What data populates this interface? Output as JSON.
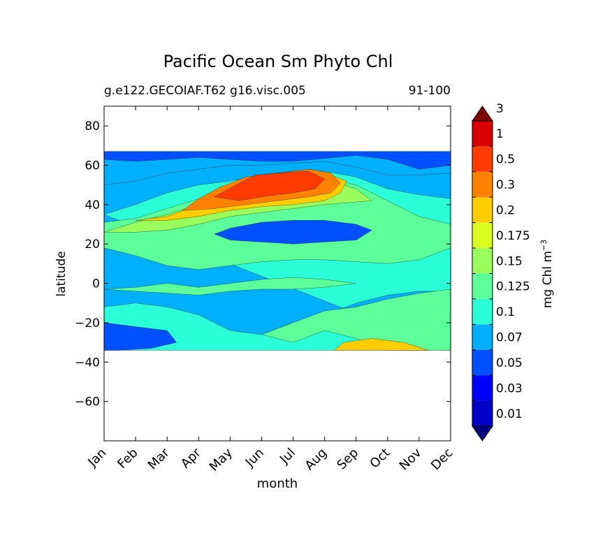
{
  "chart_data": {
    "type": "heatmap",
    "title": "Pacific Ocean Sm Phyto Chl",
    "subtitle_left": "g.e122.GECOIAF.T62 g16.visc.005",
    "subtitle_right": "91-100",
    "xlabel": "month",
    "ylabel": "latitude",
    "x_tick_labels": [
      "Jan",
      "Feb",
      "Mar",
      "Apr",
      "May",
      "Jun",
      "Jul",
      "Aug",
      "Sep",
      "Oct",
      "Nov",
      "Dec"
    ],
    "xlim": [
      0,
      11
    ],
    "ylim": [
      -80,
      90
    ],
    "y_ticks": [
      80,
      60,
      40,
      20,
      0,
      -20,
      -40,
      -60
    ],
    "y_tick_labels": [
      "80",
      "60",
      "40",
      "20",
      "0",
      "−20",
      "−40",
      "−60"
    ],
    "data_lat_range": [
      -34,
      67
    ],
    "colorbar": {
      "label": "mg Chl m",
      "label_exponent": "−3",
      "extend": "both",
      "levels": [
        0.01,
        0.03,
        0.05,
        0.07,
        0.1,
        0.125,
        0.15,
        0.175,
        0.2,
        0.3,
        0.5,
        1,
        3
      ],
      "level_labels": [
        "0.01",
        "0.03",
        "0.05",
        "0.07",
        "0.1",
        "0.125",
        "0.15",
        "0.175",
        "0.2",
        "0.3",
        "0.5",
        "1",
        "3"
      ],
      "colors": [
        "#00007f",
        "#0000c8",
        "#0000ff",
        "#0050ff",
        "#00b0ff",
        "#2affd8",
        "#5cff9a",
        "#9aff5c",
        "#d8ff1f",
        "#ffcd00",
        "#ff8100",
        "#ff3b00",
        "#d80000",
        "#7f0000"
      ]
    },
    "series": [
      {
        "name": "band_0.07",
        "polygon": [
          [
            0,
            50
          ],
          [
            1,
            52
          ],
          [
            2,
            56
          ],
          [
            3,
            58
          ],
          [
            4,
            60
          ],
          [
            5,
            60
          ],
          [
            6,
            61
          ],
          [
            7,
            62
          ],
          [
            8,
            59
          ],
          [
            9,
            55
          ],
          [
            10,
            55
          ],
          [
            11,
            56
          ],
          [
            11,
            30
          ],
          [
            10,
            31
          ],
          [
            9,
            30
          ],
          [
            8,
            27
          ],
          [
            7,
            24
          ],
          [
            6,
            22
          ],
          [
            5,
            22
          ],
          [
            4,
            21
          ],
          [
            3,
            20
          ],
          [
            2,
            19
          ],
          [
            1,
            20
          ],
          [
            0,
            21
          ]
        ]
      },
      {
        "name": "band_0.1",
        "polygon": [
          [
            0,
            35
          ],
          [
            1,
            40
          ],
          [
            2,
            46
          ],
          [
            3,
            50
          ],
          [
            4,
            52
          ],
          [
            5,
            55
          ],
          [
            6,
            57
          ],
          [
            7,
            57
          ],
          [
            8,
            54
          ],
          [
            9,
            48
          ],
          [
            10,
            45
          ],
          [
            11,
            43
          ],
          [
            11,
            -4
          ],
          [
            10,
            -4
          ],
          [
            9,
            -6
          ],
          [
            8,
            -10
          ],
          [
            7,
            -16
          ],
          [
            6,
            -20
          ],
          [
            5,
            -26
          ],
          [
            4,
            -24
          ],
          [
            3,
            -16
          ],
          [
            2,
            -12
          ],
          [
            1,
            -10
          ],
          [
            0,
            -12
          ],
          [
            0,
            -34
          ],
          [
            11,
            -34
          ]
        ]
      },
      {
        "name": "band_0.125",
        "polygon": [
          [
            0,
            31
          ],
          [
            1,
            33
          ],
          [
            2,
            38
          ],
          [
            3,
            43
          ],
          [
            4,
            47
          ],
          [
            5,
            50
          ],
          [
            6,
            53
          ],
          [
            7,
            54
          ],
          [
            8,
            50
          ],
          [
            9,
            42
          ],
          [
            10,
            34
          ],
          [
            11,
            30
          ],
          [
            11,
            18
          ],
          [
            10,
            12
          ],
          [
            9,
            10
          ],
          [
            8,
            11
          ],
          [
            7,
            12
          ],
          [
            6,
            12
          ],
          [
            5,
            11
          ],
          [
            4,
            9
          ],
          [
            3,
            7
          ],
          [
            2,
            9
          ],
          [
            1,
            14
          ],
          [
            0,
            18
          ]
        ]
      },
      {
        "name": "band_0.125_south",
        "polygon": [
          [
            5,
            -26
          ],
          [
            6,
            -20
          ],
          [
            7,
            -14
          ],
          [
            8,
            -12
          ],
          [
            9,
            -8
          ],
          [
            10,
            -5
          ],
          [
            11,
            -3
          ],
          [
            11,
            -34
          ],
          [
            9,
            -34
          ],
          [
            8,
            -28
          ],
          [
            7,
            -24
          ],
          [
            6,
            -30
          ]
        ]
      },
      {
        "name": "band_0.125_eq",
        "polygon": [
          [
            0,
            -3
          ],
          [
            1,
            -2
          ],
          [
            2,
            0
          ],
          [
            3,
            -2
          ],
          [
            4,
            0
          ],
          [
            5,
            2
          ],
          [
            6,
            3
          ],
          [
            7,
            2
          ],
          [
            8,
            0
          ],
          [
            7,
            -2
          ],
          [
            6,
            -3
          ],
          [
            5,
            -3
          ],
          [
            4,
            -4
          ],
          [
            3,
            -6
          ],
          [
            2,
            -5
          ],
          [
            1,
            -4
          ]
        ]
      },
      {
        "name": "band_0.15",
        "polygon": [
          [
            0,
            26
          ],
          [
            1,
            31
          ],
          [
            2,
            35
          ],
          [
            3,
            40
          ],
          [
            4,
            45
          ],
          [
            5,
            49
          ],
          [
            6,
            52
          ],
          [
            7,
            53
          ],
          [
            8,
            48
          ],
          [
            8.5,
            42
          ],
          [
            7,
            40
          ],
          [
            6,
            38
          ],
          [
            5,
            36
          ],
          [
            4,
            34
          ],
          [
            3,
            30
          ],
          [
            2,
            27
          ],
          [
            1,
            26
          ]
        ]
      },
      {
        "name": "band_0.2",
        "polygon": [
          [
            1,
            32
          ],
          [
            2,
            34
          ],
          [
            3,
            40
          ],
          [
            4,
            46
          ],
          [
            5,
            51
          ],
          [
            6,
            55
          ],
          [
            7,
            56
          ],
          [
            7.7,
            52
          ],
          [
            7.5,
            46
          ],
          [
            7,
            42
          ],
          [
            6,
            40
          ],
          [
            5,
            39
          ],
          [
            4,
            37
          ],
          [
            3,
            34
          ],
          [
            2,
            32
          ]
        ]
      },
      {
        "name": "band_0.2_south",
        "polygon": [
          [
            7.3,
            -34
          ],
          [
            7.6,
            -30
          ],
          [
            8.5,
            -28
          ],
          [
            9.5,
            -30
          ],
          [
            10.3,
            -34
          ]
        ]
      },
      {
        "name": "band_0.3",
        "polygon": [
          [
            2.5,
            37
          ],
          [
            3,
            43
          ],
          [
            3.7,
            49
          ],
          [
            4.5,
            54
          ],
          [
            5.5,
            56
          ],
          [
            6.5,
            58
          ],
          [
            7.2,
            56
          ],
          [
            7.5,
            51
          ],
          [
            7.2,
            46
          ],
          [
            6.5,
            44
          ],
          [
            5.5,
            42
          ],
          [
            4.5,
            40
          ],
          [
            3.5,
            38
          ]
        ]
      },
      {
        "name": "band_0.5",
        "polygon": [
          [
            3.5,
            44
          ],
          [
            4.2,
            50
          ],
          [
            4.8,
            55
          ],
          [
            5.5,
            56
          ],
          [
            6.5,
            57
          ],
          [
            7,
            53
          ],
          [
            6.7,
            48
          ],
          [
            6,
            46
          ],
          [
            5,
            44
          ],
          [
            4.3,
            42
          ]
        ]
      },
      {
        "name": "band_0.05_low",
        "polygon": [
          [
            3.5,
            25
          ],
          [
            4,
            28
          ],
          [
            5,
            31
          ],
          [
            6,
            32
          ],
          [
            7,
            32
          ],
          [
            8,
            30
          ],
          [
            8.5,
            27
          ],
          [
            8,
            22
          ],
          [
            7,
            21
          ],
          [
            6,
            20
          ],
          [
            5,
            21
          ],
          [
            4,
            22
          ]
        ]
      },
      {
        "name": "band_0.05_south",
        "polygon": [
          [
            0,
            -20
          ],
          [
            1,
            -22
          ],
          [
            2,
            -24
          ],
          [
            2.3,
            -30
          ],
          [
            1.5,
            -33
          ],
          [
            0.5,
            -34
          ],
          [
            0,
            -34
          ]
        ]
      },
      {
        "name": "band_0.05_top",
        "polygon": [
          [
            0,
            67
          ],
          [
            11,
            67
          ],
          [
            11,
            60
          ],
          [
            10,
            58
          ],
          [
            9,
            63
          ],
          [
            8,
            65
          ],
          [
            6,
            62
          ],
          [
            5,
            62
          ],
          [
            4,
            63
          ],
          [
            3,
            64
          ],
          [
            2,
            63
          ],
          [
            1,
            62
          ],
          [
            0,
            63
          ]
        ]
      }
    ]
  }
}
